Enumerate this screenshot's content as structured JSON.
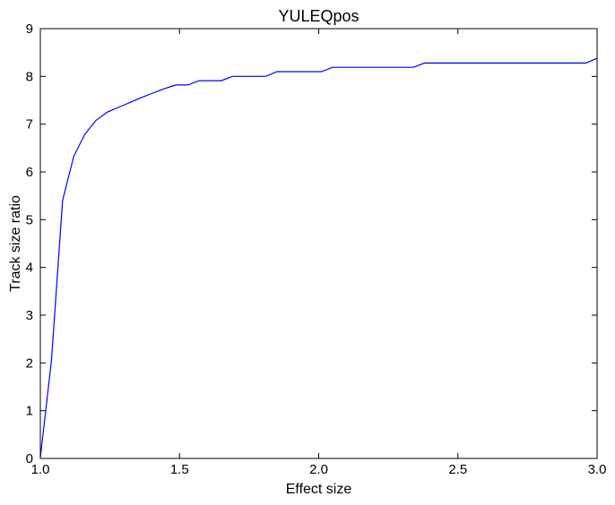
{
  "chart_data": {
    "type": "line",
    "title": "YULEQpos",
    "xlabel": "Effect size",
    "ylabel": "Track size ratio",
    "xlim": [
      1.0,
      3.0
    ],
    "ylim": [
      0,
      9
    ],
    "x_ticks": [
      "1.0",
      "1.5",
      "2.0",
      "2.5",
      "3.0"
    ],
    "y_ticks": [
      "0",
      "1",
      "2",
      "3",
      "4",
      "5",
      "6",
      "7",
      "8",
      "9"
    ],
    "grid": false,
    "series": [
      {
        "color": "#0000ff",
        "x": [
          1.0,
          1.04,
          1.08,
          1.12,
          1.16,
          1.2,
          1.24,
          1.28,
          1.32,
          1.36,
          1.4,
          1.44,
          1.48,
          1.49,
          1.53,
          1.57,
          1.61,
          1.65,
          1.69,
          1.73,
          1.77,
          1.81,
          1.85,
          1.89,
          1.93,
          1.97,
          2.01,
          2.05,
          2.09,
          2.13,
          2.17,
          2.21,
          2.25,
          2.29,
          2.34,
          2.38,
          2.42,
          2.46,
          2.5,
          2.54,
          2.58,
          2.62,
          2.66,
          2.7,
          2.74,
          2.78,
          2.82,
          2.86,
          2.9,
          2.96,
          3.0
        ],
        "y": [
          0.02,
          2.05,
          5.4,
          6.33,
          6.79,
          7.08,
          7.25,
          7.35,
          7.45,
          7.55,
          7.64,
          7.73,
          7.81,
          7.82,
          7.82,
          7.91,
          7.91,
          7.91,
          8.0,
          8.0,
          8.0,
          8.0,
          8.1,
          8.1,
          8.1,
          8.1,
          8.1,
          8.19,
          8.19,
          8.19,
          8.19,
          8.19,
          8.19,
          8.19,
          8.19,
          8.28,
          8.28,
          8.28,
          8.28,
          8.28,
          8.28,
          8.28,
          8.28,
          8.28,
          8.28,
          8.28,
          8.28,
          8.28,
          8.28,
          8.28,
          8.38
        ]
      }
    ]
  }
}
